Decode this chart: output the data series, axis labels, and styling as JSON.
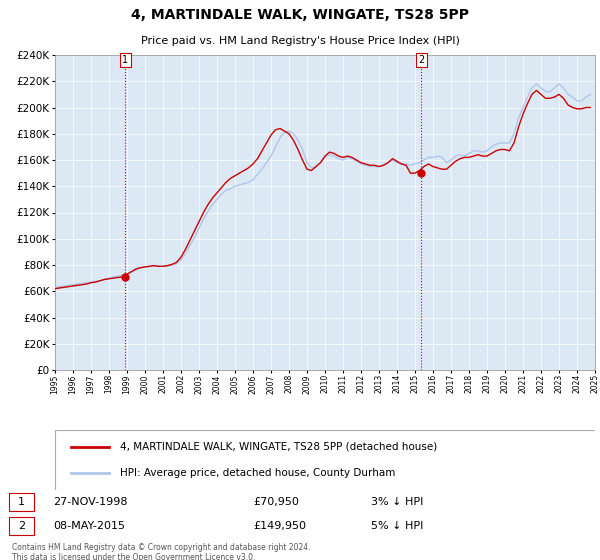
{
  "title": "4, MARTINDALE WALK, WINGATE, TS28 5PP",
  "subtitle": "Price paid vs. HM Land Registry's House Price Index (HPI)",
  "legend_line1": "4, MARTINDALE WALK, WINGATE, TS28 5PP (detached house)",
  "legend_line2": "HPI: Average price, detached house, County Durham",
  "footer_line1": "Contains HM Land Registry data © Crown copyright and database right 2024.",
  "footer_line2": "This data is licensed under the Open Government Licence v3.0.",
  "sale1_date": "27-NOV-1998",
  "sale1_price": "£70,950",
  "sale1_hpi": "3% ↓ HPI",
  "sale1_year": 1998.91,
  "sale1_value": 70950,
  "sale2_date": "08-MAY-2015",
  "sale2_price": "£149,950",
  "sale2_hpi": "5% ↓ HPI",
  "sale2_year": 2015.36,
  "sale2_value": 149950,
  "hpi_color": "#aec6e8",
  "price_color": "#cc0000",
  "background_color": "#dce9f5",
  "marker_color": "#cc0000",
  "vline_color": "#cc0000",
  "grid_color": "#ffffff",
  "ylim": [
    0,
    240000
  ],
  "ytick_step": 20000,
  "xmin": 1995,
  "xmax": 2025,
  "hpi_data": {
    "years": [
      1995.0,
      1995.25,
      1995.5,
      1995.75,
      1996.0,
      1996.25,
      1996.5,
      1996.75,
      1997.0,
      1997.25,
      1997.5,
      1997.75,
      1998.0,
      1998.25,
      1998.5,
      1998.75,
      1999.0,
      1999.25,
      1999.5,
      1999.75,
      2000.0,
      2000.25,
      2000.5,
      2000.75,
      2001.0,
      2001.25,
      2001.5,
      2001.75,
      2002.0,
      2002.25,
      2002.5,
      2002.75,
      2003.0,
      2003.25,
      2003.5,
      2003.75,
      2004.0,
      2004.25,
      2004.5,
      2004.75,
      2005.0,
      2005.25,
      2005.5,
      2005.75,
      2006.0,
      2006.25,
      2006.5,
      2006.75,
      2007.0,
      2007.25,
      2007.5,
      2007.75,
      2008.0,
      2008.25,
      2008.5,
      2008.75,
      2009.0,
      2009.25,
      2009.5,
      2009.75,
      2010.0,
      2010.25,
      2010.5,
      2010.75,
      2011.0,
      2011.25,
      2011.5,
      2011.75,
      2012.0,
      2012.25,
      2012.5,
      2012.75,
      2013.0,
      2013.25,
      2013.5,
      2013.75,
      2014.0,
      2014.25,
      2014.5,
      2014.75,
      2015.0,
      2015.25,
      2015.5,
      2015.75,
      2016.0,
      2016.25,
      2016.5,
      2016.75,
      2017.0,
      2017.25,
      2017.5,
      2017.75,
      2018.0,
      2018.25,
      2018.5,
      2018.75,
      2019.0,
      2019.25,
      2019.5,
      2019.75,
      2020.0,
      2020.25,
      2020.5,
      2020.75,
      2021.0,
      2021.25,
      2021.5,
      2021.75,
      2022.0,
      2022.25,
      2022.5,
      2022.75,
      2023.0,
      2023.25,
      2023.5,
      2023.75,
      2024.0,
      2024.25,
      2024.5,
      2024.75
    ],
    "values": [
      63000,
      63500,
      64000,
      64500,
      65000,
      65500,
      66000,
      66500,
      67000,
      67500,
      68000,
      69000,
      70000,
      71000,
      71500,
      72000,
      73000,
      74500,
      76000,
      77500,
      78500,
      79000,
      79500,
      79000,
      79000,
      79500,
      80000,
      81000,
      84000,
      89000,
      95000,
      101000,
      108000,
      115000,
      121000,
      126000,
      130000,
      134000,
      137000,
      138000,
      140000,
      141000,
      142000,
      143000,
      145000,
      149000,
      153000,
      158000,
      163000,
      170000,
      177000,
      181000,
      182000,
      180000,
      175000,
      168000,
      158000,
      154000,
      155000,
      158000,
      162000,
      164000,
      163000,
      161000,
      160000,
      162000,
      161000,
      159000,
      157000,
      156000,
      155000,
      155000,
      155000,
      156000,
      158000,
      160000,
      158000,
      157000,
      157000,
      156000,
      157000,
      158000,
      160000,
      162000,
      162000,
      163000,
      162000,
      158000,
      160000,
      163000,
      164000,
      163000,
      165000,
      167000,
      167000,
      166000,
      167000,
      170000,
      172000,
      173000,
      173000,
      173000,
      180000,
      192000,
      200000,
      208000,
      215000,
      218000,
      215000,
      212000,
      212000,
      215000,
      218000,
      215000,
      210000,
      208000,
      205000,
      205000,
      208000,
      210000
    ]
  },
  "price_data": {
    "years": [
      1995.0,
      1995.25,
      1995.5,
      1995.75,
      1996.0,
      1996.25,
      1996.5,
      1996.75,
      1997.0,
      1997.25,
      1997.5,
      1997.75,
      1998.0,
      1998.25,
      1998.5,
      1998.75,
      1999.0,
      1999.25,
      1999.5,
      1999.75,
      2000.0,
      2000.25,
      2000.5,
      2000.75,
      2001.0,
      2001.25,
      2001.5,
      2001.75,
      2002.0,
      2002.25,
      2002.5,
      2002.75,
      2003.0,
      2003.25,
      2003.5,
      2003.75,
      2004.0,
      2004.25,
      2004.5,
      2004.75,
      2005.0,
      2005.25,
      2005.5,
      2005.75,
      2006.0,
      2006.25,
      2006.5,
      2006.75,
      2007.0,
      2007.25,
      2007.5,
      2007.75,
      2008.0,
      2008.25,
      2008.5,
      2008.75,
      2009.0,
      2009.25,
      2009.5,
      2009.75,
      2010.0,
      2010.25,
      2010.5,
      2010.75,
      2011.0,
      2011.25,
      2011.5,
      2011.75,
      2012.0,
      2012.25,
      2012.5,
      2012.75,
      2013.0,
      2013.25,
      2013.5,
      2013.75,
      2014.0,
      2014.25,
      2014.5,
      2014.75,
      2015.0,
      2015.25,
      2015.5,
      2015.75,
      2016.0,
      2016.25,
      2016.5,
      2016.75,
      2017.0,
      2017.25,
      2017.5,
      2017.75,
      2018.0,
      2018.25,
      2018.5,
      2018.75,
      2019.0,
      2019.25,
      2019.5,
      2019.75,
      2020.0,
      2020.25,
      2020.5,
      2020.75,
      2021.0,
      2021.25,
      2021.5,
      2021.75,
      2022.0,
      2022.25,
      2022.5,
      2022.75,
      2023.0,
      2023.25,
      2023.5,
      2023.75,
      2024.0,
      2024.25,
      2024.5,
      2024.75
    ],
    "values": [
      62000,
      62500,
      63000,
      63500,
      64000,
      64500,
      65000,
      65500,
      66500,
      67000,
      68000,
      69000,
      69500,
      70000,
      70500,
      70950,
      73000,
      75000,
      77000,
      78000,
      78500,
      79000,
      79500,
      79000,
      79000,
      79500,
      80500,
      82000,
      86000,
      92000,
      99000,
      106000,
      113000,
      120000,
      126000,
      131000,
      135000,
      139000,
      143000,
      146000,
      148000,
      150000,
      152000,
      154000,
      157000,
      161000,
      167000,
      173000,
      179000,
      183000,
      184000,
      182000,
      180000,
      175000,
      168000,
      160000,
      153000,
      152000,
      155000,
      158000,
      163000,
      166000,
      165000,
      163000,
      162000,
      163000,
      162000,
      160000,
      158000,
      157000,
      156000,
      156000,
      155000,
      156000,
      158000,
      161000,
      159000,
      157000,
      156000,
      149950,
      150000,
      152000,
      155000,
      157000,
      155000,
      154000,
      153000,
      153000,
      156000,
      159000,
      161000,
      162000,
      162000,
      163000,
      164000,
      163000,
      163000,
      165000,
      167000,
      168000,
      168000,
      167000,
      173000,
      185000,
      195000,
      203000,
      210000,
      213000,
      210000,
      207000,
      207000,
      208000,
      210000,
      207000,
      202000,
      200000,
      199000,
      199000,
      200000,
      200000
    ]
  }
}
